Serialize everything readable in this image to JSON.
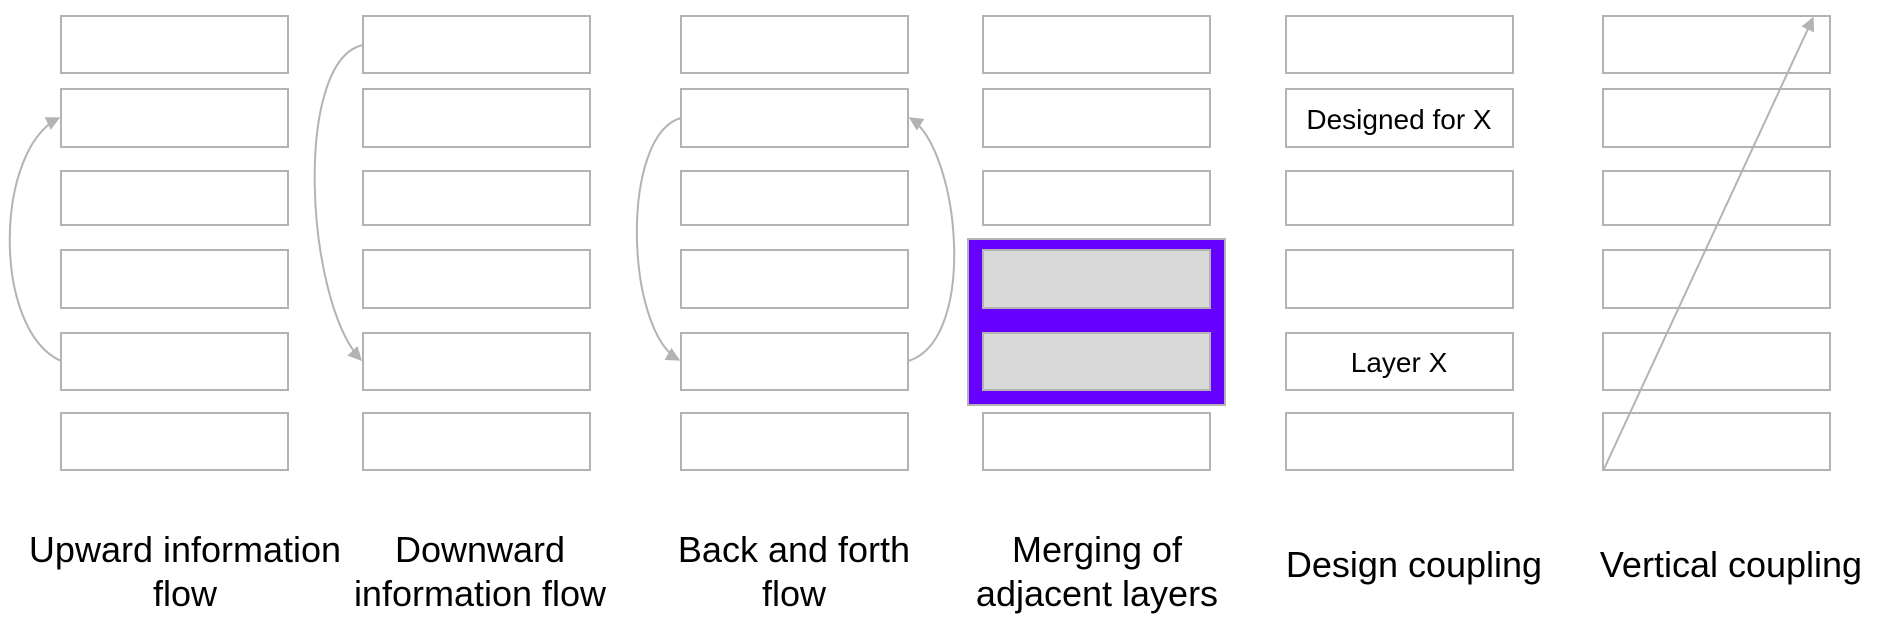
{
  "colors": {
    "box_stroke": "#b3b3b3",
    "merge_highlight": "#6600ff",
    "merged_fill": "#d9d9d9",
    "text": "#000000"
  },
  "diagrams": {
    "upward": {
      "caption_line1": "Upward information",
      "caption_line2": "flow"
    },
    "downward": {
      "caption_line1": "Downward",
      "caption_line2": "information flow"
    },
    "back_forth": {
      "caption_line1": "Back and forth",
      "caption_line2": "flow"
    },
    "merging": {
      "caption_line1": "Merging of",
      "caption_line2": "adjacent layers"
    },
    "design": {
      "caption": "Design coupling",
      "designed_label": "Designed for X",
      "layer_label": "Layer X"
    },
    "vertical": {
      "caption": "Vertical coupling"
    }
  }
}
